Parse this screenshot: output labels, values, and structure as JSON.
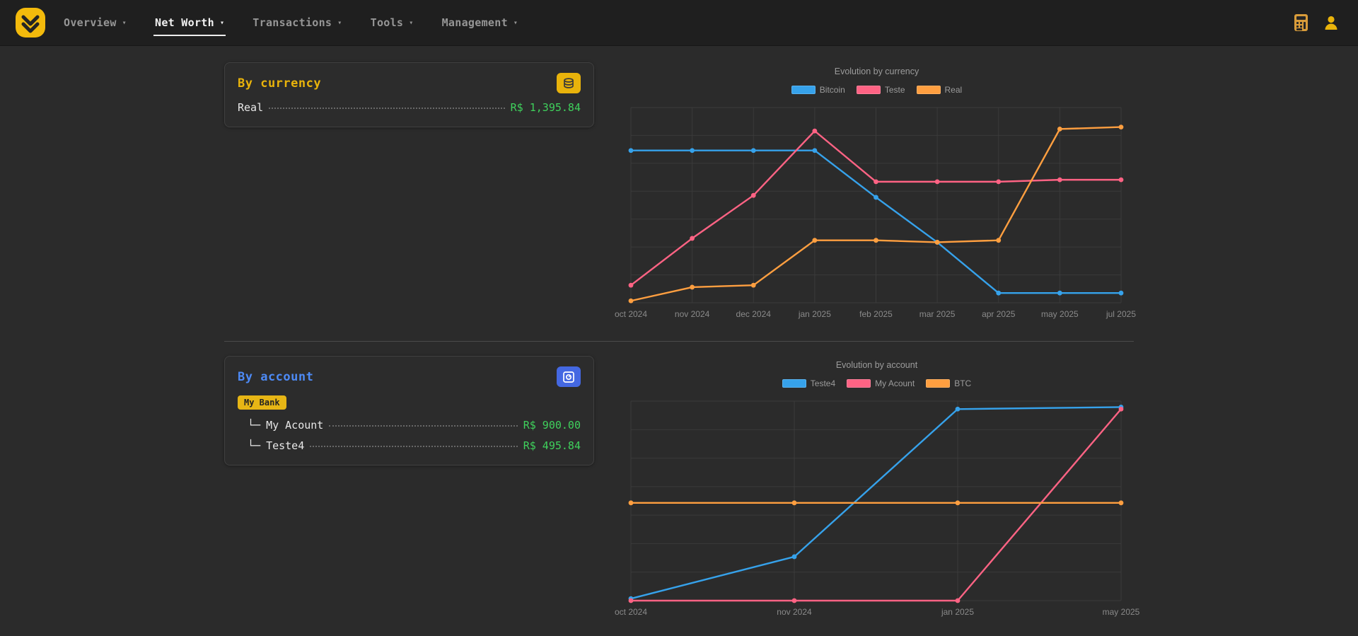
{
  "navbar": {
    "caret": "▾",
    "items": [
      {
        "label": "Overview",
        "active": false
      },
      {
        "label": "Net Worth",
        "active": true
      },
      {
        "label": "Transactions",
        "active": false
      },
      {
        "label": "Tools",
        "active": false
      },
      {
        "label": "Management",
        "active": false
      }
    ],
    "icons": [
      "calculator-icon",
      "user-icon"
    ]
  },
  "colors": {
    "accent_yellow": "#e9b30b",
    "accent_blue": "#4d8af5",
    "value_green": "#3fd15c",
    "navbar_bg": "#1f1f1f",
    "page_bg": "#2b2b2b",
    "card_bg": "#2c2c2c",
    "series_blue": "#36a2eb",
    "series_pink": "#ff6384",
    "series_orange": "#ff9f40"
  },
  "cards": {
    "currency": {
      "title": "By currency",
      "icon": "coin-stack-icon",
      "rows": [
        {
          "label": "Real",
          "value": "R$ 1,395.84"
        }
      ]
    },
    "account": {
      "title": "By account",
      "icon": "bank-safe-icon",
      "badge": "My Bank",
      "rows": [
        {
          "prefix": "└─",
          "label": "My Acount",
          "value": "R$ 900.00"
        },
        {
          "prefix": "└─",
          "label": "Teste4",
          "value": "R$ 495.84"
        }
      ]
    }
  },
  "chart_data": [
    {
      "type": "line",
      "title": "Evolution by currency",
      "xlabel": "",
      "ylabel": "",
      "categories": [
        "oct 2024",
        "nov 2024",
        "dec 2024",
        "jan 2025",
        "feb 2025",
        "mar 2025",
        "apr 2025",
        "may 2025",
        "jul 2025"
      ],
      "series": [
        {
          "name": "Bitcoin",
          "color": "#36a2eb",
          "values": [
            78,
            78,
            78,
            78,
            54,
            31,
            5,
            5,
            5
          ]
        },
        {
          "name": "Teste",
          "color": "#ff6384",
          "values": [
            9,
            33,
            55,
            88,
            62,
            62,
            62,
            63,
            63
          ]
        },
        {
          "name": "Real",
          "color": "#ff9f40",
          "values": [
            1,
            8,
            9,
            32,
            32,
            31,
            32,
            89,
            90
          ]
        }
      ],
      "ylim": [
        0,
        100
      ],
      "y_ticks_visible": false,
      "legend_position": "top",
      "grid": true
    },
    {
      "type": "line",
      "title": "Evolution by account",
      "xlabel": "",
      "ylabel": "",
      "categories": [
        "oct 2024",
        "nov 2024",
        "jan 2025",
        "may 2025"
      ],
      "series": [
        {
          "name": "Teste4",
          "color": "#36a2eb",
          "values": [
            1,
            22,
            96,
            97
          ]
        },
        {
          "name": "My Acount",
          "color": "#ff6384",
          "values": [
            0,
            0,
            0,
            96
          ]
        },
        {
          "name": "BTC",
          "color": "#ff9f40",
          "values": [
            49,
            49,
            49,
            49
          ]
        }
      ],
      "ylim": [
        0,
        100
      ],
      "y_ticks_visible": false,
      "legend_position": "top",
      "grid": true
    }
  ]
}
